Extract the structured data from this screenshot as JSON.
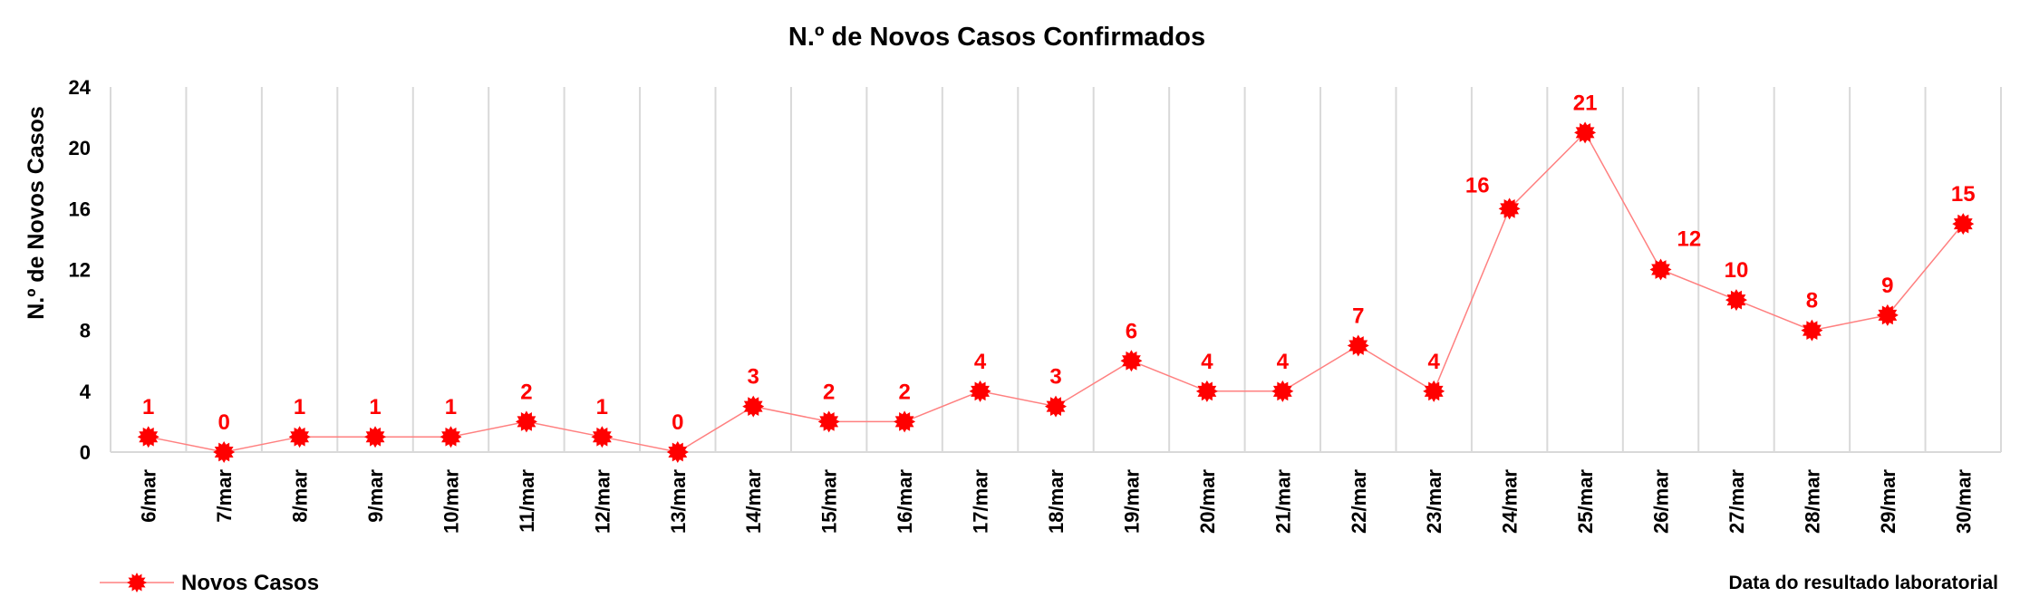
{
  "chart_data": {
    "type": "line",
    "title": "N.º de Novos Casos Confirmados",
    "ylabel": "N.º de Novos Casos",
    "xlabel": "Data do resultado laboratorial",
    "ylim": [
      0,
      24
    ],
    "yticks": [
      0,
      4,
      8,
      12,
      16,
      20,
      24
    ],
    "categories": [
      "6/mar",
      "7/mar",
      "8/mar",
      "9/mar",
      "10/mar",
      "11/mar",
      "12/mar",
      "13/mar",
      "14/mar",
      "15/mar",
      "16/mar",
      "17/mar",
      "18/mar",
      "19/mar",
      "20/mar",
      "21/mar",
      "22/mar",
      "23/mar",
      "24/mar",
      "25/mar",
      "26/mar",
      "27/mar",
      "28/mar",
      "29/mar",
      "30/mar"
    ],
    "series": [
      {
        "name": "Novos Casos",
        "color": "#ff0000",
        "values": [
          1,
          0,
          1,
          1,
          1,
          2,
          1,
          0,
          3,
          2,
          2,
          4,
          3,
          6,
          4,
          4,
          7,
          4,
          16,
          21,
          12,
          10,
          8,
          9,
          15
        ]
      }
    ],
    "grid": "vertical",
    "legend": "bottom-left",
    "data_labels": true
  }
}
